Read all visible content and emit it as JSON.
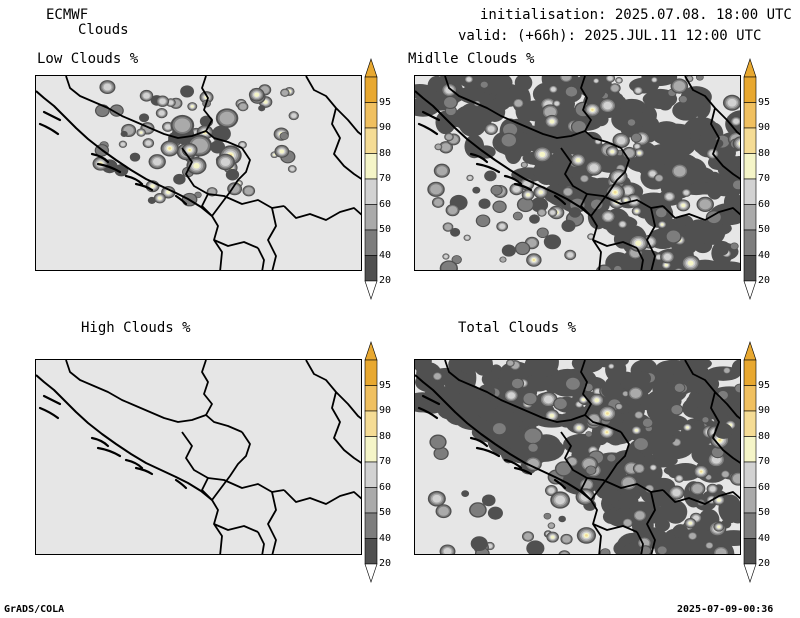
{
  "header": {
    "model": "ECMWF",
    "product": "Clouds",
    "init": "initialisation: 2025.07.08. 18:00 UTC",
    "valid": "valid: (+66h): 2025.JUL.11 12:00 UTC"
  },
  "panels": [
    {
      "title": "Low Clouds %",
      "key": "low"
    },
    {
      "title": "Midlle Clouds %",
      "key": "mid"
    },
    {
      "title": "High Clouds %",
      "key": "high"
    },
    {
      "title": "Total Clouds %",
      "key": "total"
    }
  ],
  "colorbar": {
    "labels": [
      "95",
      "90",
      "80",
      "70",
      "60",
      "50",
      "40",
      "20"
    ],
    "colors": [
      "#e8a830",
      "#f0c060",
      "#f5dc95",
      "#f5f5c8",
      "#d2d2d2",
      "#aaaaaa",
      "#7d7d7d",
      "#505050"
    ],
    "arrow_top": "#e8a830",
    "arrow_bottom": "#ffffff"
  },
  "footer": {
    "left": "GrADS/COLA",
    "right": "2025-07-09-00:36"
  }
}
